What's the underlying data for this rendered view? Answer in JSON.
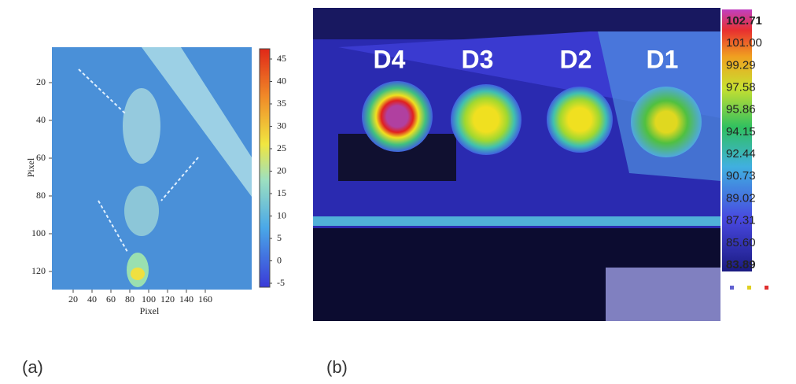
{
  "panel_a": {
    "label": "(a)",
    "x_axis_title": "Pixel",
    "y_axis_title": "Pixel",
    "x_ticks": [
      20,
      40,
      60,
      80,
      100,
      120,
      140,
      160
    ],
    "y_ticks": [
      20,
      40,
      60,
      80,
      100,
      120
    ],
    "colorbar_ticks": [
      -5,
      0,
      5,
      10,
      15,
      20,
      25,
      30,
      35,
      40,
      45
    ]
  },
  "panel_b": {
    "label": "(b)",
    "detectors": [
      "D4",
      "D3",
      "D2",
      "D1"
    ],
    "colorbar_labels": [
      "102.71",
      "101.00",
      "99.29",
      "97.58",
      "95.86",
      "94.15",
      "92.44",
      "90.73",
      "89.02",
      "87.31",
      "85.60",
      "83.89"
    ]
  }
}
